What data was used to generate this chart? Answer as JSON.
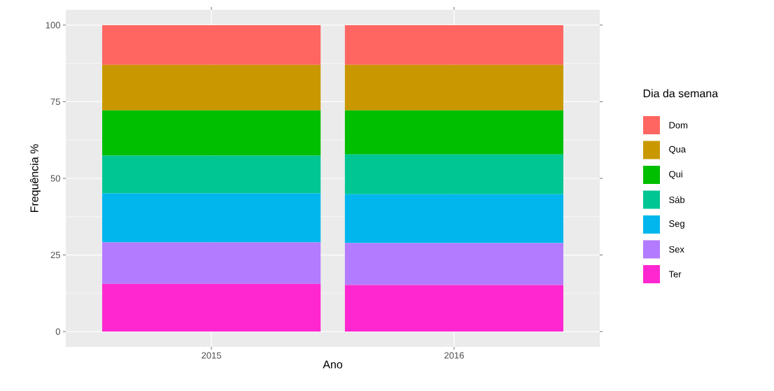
{
  "chart_data": {
    "type": "bar",
    "stacked": true,
    "xlabel": "Ano",
    "ylabel": "Frequência %",
    "legend_title": "Dia da semana",
    "legend": "right",
    "grid": true,
    "categories": [
      "2015",
      "2016"
    ],
    "ylim": [
      -5,
      105
    ],
    "yticks": [
      0,
      25,
      50,
      75,
      100
    ],
    "series": [
      {
        "name": "Ter",
        "color": "#ff27d0",
        "values": [
          15.6,
          15.2
        ]
      },
      {
        "name": "Sex",
        "color": "#b37bff",
        "values": [
          13.5,
          13.7
        ]
      },
      {
        "name": "Seg",
        "color": "#00b6ed",
        "values": [
          16.0,
          15.9
        ]
      },
      {
        "name": "Sáb",
        "color": "#00c694",
        "values": [
          12.3,
          13.0
        ]
      },
      {
        "name": "Qui",
        "color": "#00be00",
        "values": [
          14.8,
          14.4
        ]
      },
      {
        "name": "Qua",
        "color": "#c99800",
        "values": [
          14.8,
          14.8
        ]
      },
      {
        "name": "Dom",
        "color": "#ff6661",
        "values": [
          13.0,
          13.0
        ]
      }
    ]
  }
}
